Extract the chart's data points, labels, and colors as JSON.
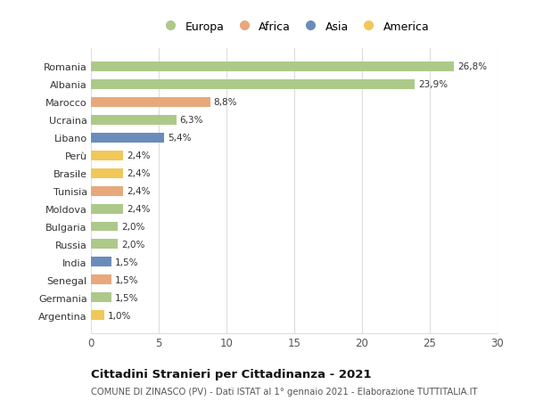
{
  "countries": [
    "Romania",
    "Albania",
    "Marocco",
    "Ucraina",
    "Libano",
    "Perù",
    "Brasile",
    "Tunisia",
    "Moldova",
    "Bulgaria",
    "Russia",
    "India",
    "Senegal",
    "Germania",
    "Argentina"
  ],
  "values": [
    26.8,
    23.9,
    8.8,
    6.3,
    5.4,
    2.4,
    2.4,
    2.4,
    2.4,
    2.0,
    2.0,
    1.5,
    1.5,
    1.5,
    1.0
  ],
  "labels": [
    "26,8%",
    "23,9%",
    "8,8%",
    "6,3%",
    "5,4%",
    "2,4%",
    "2,4%",
    "2,4%",
    "2,4%",
    "2,0%",
    "2,0%",
    "1,5%",
    "1,5%",
    "1,5%",
    "1,0%"
  ],
  "continents": [
    "Europa",
    "Europa",
    "Africa",
    "Europa",
    "Asia",
    "America",
    "America",
    "Africa",
    "Europa",
    "Europa",
    "Europa",
    "Asia",
    "Africa",
    "Europa",
    "America"
  ],
  "colors": {
    "Europa": "#adc98a",
    "Africa": "#e8a87c",
    "Asia": "#6b8cba",
    "America": "#f0c85a"
  },
  "legend_entries": [
    "Europa",
    "Africa",
    "Asia",
    "America"
  ],
  "title": "Cittadini Stranieri per Cittadinanza - 2021",
  "subtitle": "COMUNE DI ZINASCO (PV) - Dati ISTAT al 1° gennaio 2021 - Elaborazione TUTTITALIA.IT",
  "xlim": [
    0,
    30
  ],
  "xticks": [
    0,
    5,
    10,
    15,
    20,
    25,
    30
  ],
  "background_color": "#ffffff",
  "grid_color": "#dddddd",
  "bar_height": 0.55
}
